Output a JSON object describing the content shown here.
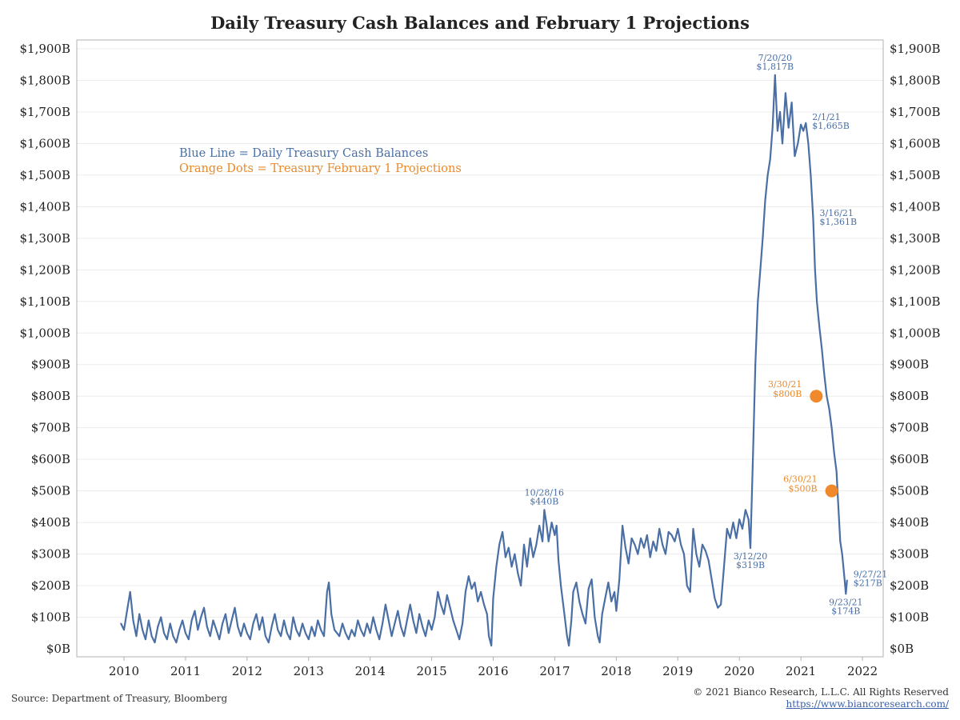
{
  "page": {
    "title": "Daily Treasury Cash Balances and February 1 Projections",
    "source": "Source: Department of Treasury, Bloomberg",
    "copyright": "© 2021 Bianco Research, L.L.C. All Rights Reserved",
    "link": "https://www.biancoresearch.com/"
  },
  "colors": {
    "series": "#4a6fa5",
    "projection": "#f0892b",
    "grid": "#ececec",
    "axis": "#b0b0b0"
  },
  "chart_data": {
    "type": "line",
    "title": "Daily Treasury Cash Balances and February 1 Projections",
    "y_unit": "$B",
    "ylim": [
      0,
      1900
    ],
    "xlim": [
      2009.8,
      2022.2
    ],
    "y_ticks": [
      0,
      100,
      200,
      300,
      400,
      500,
      600,
      700,
      800,
      900,
      1000,
      1100,
      1200,
      1300,
      1400,
      1500,
      1600,
      1700,
      1800,
      1900
    ],
    "y_tick_labels": [
      "$0B",
      "$100B",
      "$200B",
      "$300B",
      "$400B",
      "$500B",
      "$600B",
      "$700B",
      "$800B",
      "$900B",
      "$1,000B",
      "$1,100B",
      "$1,200B",
      "$1,300B",
      "$1,400B",
      "$1,500B",
      "$1,600B",
      "$1,700B",
      "$1,800B",
      "$1,900B"
    ],
    "x_ticks": [
      2010,
      2011,
      2012,
      2013,
      2014,
      2015,
      2016,
      2017,
      2018,
      2019,
      2020,
      2021,
      2022
    ],
    "x_tick_labels": [
      "2010",
      "2011",
      "2012",
      "2013",
      "2014",
      "2015",
      "2016",
      "2017",
      "2018",
      "2019",
      "2020",
      "2021",
      "2022"
    ],
    "grid": true,
    "legend": [
      {
        "text": "Blue Line = Daily Treasury Cash Balances",
        "color": "#4a6fa5"
      },
      {
        "text": "Orange Dots = Treasury February 1 Projections",
        "color": "#e8892b"
      }
    ],
    "series": [
      {
        "points": [
          [
            2009.95,
            80
          ],
          [
            2010.0,
            60
          ],
          [
            2010.05,
            120
          ],
          [
            2010.1,
            180
          ],
          [
            2010.15,
            90
          ],
          [
            2010.2,
            40
          ],
          [
            2010.25,
            110
          ],
          [
            2010.3,
            60
          ],
          [
            2010.35,
            30
          ],
          [
            2010.4,
            90
          ],
          [
            2010.45,
            40
          ],
          [
            2010.5,
            20
          ],
          [
            2010.55,
            70
          ],
          [
            2010.6,
            100
          ],
          [
            2010.65,
            50
          ],
          [
            2010.7,
            30
          ],
          [
            2010.75,
            80
          ],
          [
            2010.8,
            40
          ],
          [
            2010.85,
            20
          ],
          [
            2010.9,
            60
          ],
          [
            2010.95,
            90
          ],
          [
            2011.0,
            50
          ],
          [
            2011.05,
            30
          ],
          [
            2011.1,
            90
          ],
          [
            2011.15,
            120
          ],
          [
            2011.2,
            60
          ],
          [
            2011.25,
            100
          ],
          [
            2011.3,
            130
          ],
          [
            2011.35,
            70
          ],
          [
            2011.4,
            40
          ],
          [
            2011.45,
            90
          ],
          [
            2011.5,
            60
          ],
          [
            2011.55,
            30
          ],
          [
            2011.6,
            80
          ],
          [
            2011.65,
            110
          ],
          [
            2011.7,
            50
          ],
          [
            2011.75,
            90
          ],
          [
            2011.8,
            130
          ],
          [
            2011.85,
            70
          ],
          [
            2011.9,
            40
          ],
          [
            2011.95,
            80
          ],
          [
            2012.0,
            50
          ],
          [
            2012.05,
            30
          ],
          [
            2012.1,
            80
          ],
          [
            2012.15,
            110
          ],
          [
            2012.2,
            60
          ],
          [
            2012.25,
            100
          ],
          [
            2012.3,
            40
          ],
          [
            2012.35,
            20
          ],
          [
            2012.4,
            70
          ],
          [
            2012.45,
            110
          ],
          [
            2012.5,
            60
          ],
          [
            2012.55,
            40
          ],
          [
            2012.6,
            90
          ],
          [
            2012.65,
            50
          ],
          [
            2012.7,
            30
          ],
          [
            2012.75,
            100
          ],
          [
            2012.8,
            60
          ],
          [
            2012.85,
            40
          ],
          [
            2012.9,
            80
          ],
          [
            2012.95,
            50
          ],
          [
            2013.0,
            30
          ],
          [
            2013.05,
            70
          ],
          [
            2013.1,
            40
          ],
          [
            2013.15,
            90
          ],
          [
            2013.2,
            60
          ],
          [
            2013.25,
            40
          ],
          [
            2013.3,
            180
          ],
          [
            2013.33,
            210
          ],
          [
            2013.37,
            110
          ],
          [
            2013.42,
            60
          ],
          [
            2013.5,
            40
          ],
          [
            2013.55,
            80
          ],
          [
            2013.6,
            50
          ],
          [
            2013.65,
            30
          ],
          [
            2013.7,
            60
          ],
          [
            2013.75,
            40
          ],
          [
            2013.8,
            90
          ],
          [
            2013.85,
            60
          ],
          [
            2013.9,
            40
          ],
          [
            2013.95,
            80
          ],
          [
            2014.0,
            50
          ],
          [
            2014.05,
            100
          ],
          [
            2014.1,
            60
          ],
          [
            2014.15,
            30
          ],
          [
            2014.2,
            80
          ],
          [
            2014.25,
            140
          ],
          [
            2014.3,
            90
          ],
          [
            2014.35,
            40
          ],
          [
            2014.4,
            80
          ],
          [
            2014.45,
            120
          ],
          [
            2014.5,
            70
          ],
          [
            2014.55,
            40
          ],
          [
            2014.6,
            90
          ],
          [
            2014.65,
            140
          ],
          [
            2014.7,
            90
          ],
          [
            2014.75,
            50
          ],
          [
            2014.8,
            110
          ],
          [
            2014.85,
            70
          ],
          [
            2014.9,
            40
          ],
          [
            2014.95,
            90
          ],
          [
            2015.0,
            60
          ],
          [
            2015.05,
            100
          ],
          [
            2015.1,
            180
          ],
          [
            2015.15,
            140
          ],
          [
            2015.2,
            110
          ],
          [
            2015.25,
            170
          ],
          [
            2015.3,
            130
          ],
          [
            2015.35,
            90
          ],
          [
            2015.4,
            60
          ],
          [
            2015.45,
            30
          ],
          [
            2015.5,
            80
          ],
          [
            2015.55,
            180
          ],
          [
            2015.6,
            230
          ],
          [
            2015.65,
            190
          ],
          [
            2015.7,
            210
          ],
          [
            2015.75,
            150
          ],
          [
            2015.8,
            180
          ],
          [
            2015.85,
            140
          ],
          [
            2015.9,
            110
          ],
          [
            2015.93,
            40
          ],
          [
            2015.97,
            10
          ],
          [
            2016.0,
            160
          ],
          [
            2016.05,
            260
          ],
          [
            2016.1,
            330
          ],
          [
            2016.15,
            370
          ],
          [
            2016.2,
            290
          ],
          [
            2016.25,
            320
          ],
          [
            2016.3,
            260
          ],
          [
            2016.35,
            300
          ],
          [
            2016.4,
            240
          ],
          [
            2016.45,
            200
          ],
          [
            2016.5,
            330
          ],
          [
            2016.55,
            260
          ],
          [
            2016.6,
            350
          ],
          [
            2016.65,
            290
          ],
          [
            2016.7,
            330
          ],
          [
            2016.75,
            390
          ],
          [
            2016.8,
            340
          ],
          [
            2016.83,
            440
          ],
          [
            2016.87,
            390
          ],
          [
            2016.9,
            340
          ],
          [
            2016.95,
            400
          ],
          [
            2017.0,
            360
          ],
          [
            2017.03,
            390
          ],
          [
            2017.06,
            280
          ],
          [
            2017.1,
            200
          ],
          [
            2017.15,
            120
          ],
          [
            2017.2,
            40
          ],
          [
            2017.23,
            10
          ],
          [
            2017.27,
            90
          ],
          [
            2017.3,
            180
          ],
          [
            2017.35,
            210
          ],
          [
            2017.4,
            150
          ],
          [
            2017.45,
            110
          ],
          [
            2017.5,
            80
          ],
          [
            2017.55,
            190
          ],
          [
            2017.6,
            220
          ],
          [
            2017.65,
            100
          ],
          [
            2017.7,
            40
          ],
          [
            2017.73,
            20
          ],
          [
            2017.77,
            110
          ],
          [
            2017.82,
            160
          ],
          [
            2017.87,
            210
          ],
          [
            2017.92,
            150
          ],
          [
            2017.97,
            180
          ],
          [
            2018.0,
            120
          ],
          [
            2018.05,
            220
          ],
          [
            2018.1,
            390
          ],
          [
            2018.15,
            320
          ],
          [
            2018.2,
            270
          ],
          [
            2018.25,
            350
          ],
          [
            2018.3,
            330
          ],
          [
            2018.35,
            300
          ],
          [
            2018.4,
            350
          ],
          [
            2018.45,
            320
          ],
          [
            2018.5,
            360
          ],
          [
            2018.55,
            290
          ],
          [
            2018.6,
            340
          ],
          [
            2018.65,
            310
          ],
          [
            2018.7,
            380
          ],
          [
            2018.75,
            330
          ],
          [
            2018.8,
            300
          ],
          [
            2018.85,
            370
          ],
          [
            2018.9,
            360
          ],
          [
            2018.95,
            340
          ],
          [
            2019.0,
            380
          ],
          [
            2019.05,
            330
          ],
          [
            2019.1,
            300
          ],
          [
            2019.15,
            200
          ],
          [
            2019.2,
            180
          ],
          [
            2019.25,
            380
          ],
          [
            2019.3,
            300
          ],
          [
            2019.35,
            260
          ],
          [
            2019.4,
            330
          ],
          [
            2019.45,
            310
          ],
          [
            2019.5,
            280
          ],
          [
            2019.55,
            220
          ],
          [
            2019.6,
            160
          ],
          [
            2019.65,
            130
          ],
          [
            2019.7,
            140
          ],
          [
            2019.75,
            260
          ],
          [
            2019.8,
            380
          ],
          [
            2019.85,
            350
          ],
          [
            2019.9,
            400
          ],
          [
            2019.95,
            350
          ],
          [
            2020.0,
            410
          ],
          [
            2020.05,
            380
          ],
          [
            2020.1,
            440
          ],
          [
            2020.15,
            410
          ],
          [
            2020.18,
            319
          ],
          [
            2020.22,
            600
          ],
          [
            2020.26,
            900
          ],
          [
            2020.3,
            1100
          ],
          [
            2020.34,
            1200
          ],
          [
            2020.38,
            1300
          ],
          [
            2020.42,
            1420
          ],
          [
            2020.46,
            1500
          ],
          [
            2020.5,
            1550
          ],
          [
            2020.54,
            1650
          ],
          [
            2020.58,
            1817
          ],
          [
            2020.62,
            1640
          ],
          [
            2020.66,
            1700
          ],
          [
            2020.7,
            1600
          ],
          [
            2020.75,
            1760
          ],
          [
            2020.8,
            1650
          ],
          [
            2020.85,
            1730
          ],
          [
            2020.9,
            1560
          ],
          [
            2020.95,
            1600
          ],
          [
            2021.0,
            1660
          ],
          [
            2021.04,
            1640
          ],
          [
            2021.08,
            1665
          ],
          [
            2021.12,
            1600
          ],
          [
            2021.16,
            1500
          ],
          [
            2021.2,
            1361
          ],
          [
            2021.23,
            1200
          ],
          [
            2021.26,
            1100
          ],
          [
            2021.3,
            1020
          ],
          [
            2021.34,
            950
          ],
          [
            2021.38,
            870
          ],
          [
            2021.42,
            800
          ],
          [
            2021.46,
            760
          ],
          [
            2021.5,
            700
          ],
          [
            2021.54,
            620
          ],
          [
            2021.58,
            560
          ],
          [
            2021.6,
            480
          ],
          [
            2021.64,
            340
          ],
          [
            2021.67,
            300
          ],
          [
            2021.7,
            240
          ],
          [
            2021.73,
            174
          ],
          [
            2021.75,
            217
          ]
        ]
      }
    ],
    "projections": [
      {
        "x": 2021.25,
        "y": 800,
        "label_date": "3/30/21",
        "label_value": "$800B"
      },
      {
        "x": 2021.5,
        "y": 500,
        "label_date": "6/30/21",
        "label_value": "$500B"
      }
    ],
    "annotations": [
      {
        "x": 2016.83,
        "y": 440,
        "date": "10/28/16",
        "value": "$440B",
        "pos": "above"
      },
      {
        "x": 2020.18,
        "y": 319,
        "date": "3/12/20",
        "value": "$319B",
        "pos": "below"
      },
      {
        "x": 2020.58,
        "y": 1817,
        "date": "7/20/20",
        "value": "$1,817B",
        "pos": "above"
      },
      {
        "x": 2021.08,
        "y": 1665,
        "date": "2/1/21",
        "value": "$1,665B",
        "pos": "right"
      },
      {
        "x": 2021.2,
        "y": 1361,
        "date": "3/16/21",
        "value": "$1,361B",
        "pos": "right"
      },
      {
        "x": 2021.73,
        "y": 174,
        "date": "9/23/21",
        "value": "$174B",
        "pos": "below"
      },
      {
        "x": 2021.75,
        "y": 217,
        "date": "9/27/21",
        "value": "$217B",
        "pos": "right"
      }
    ]
  }
}
